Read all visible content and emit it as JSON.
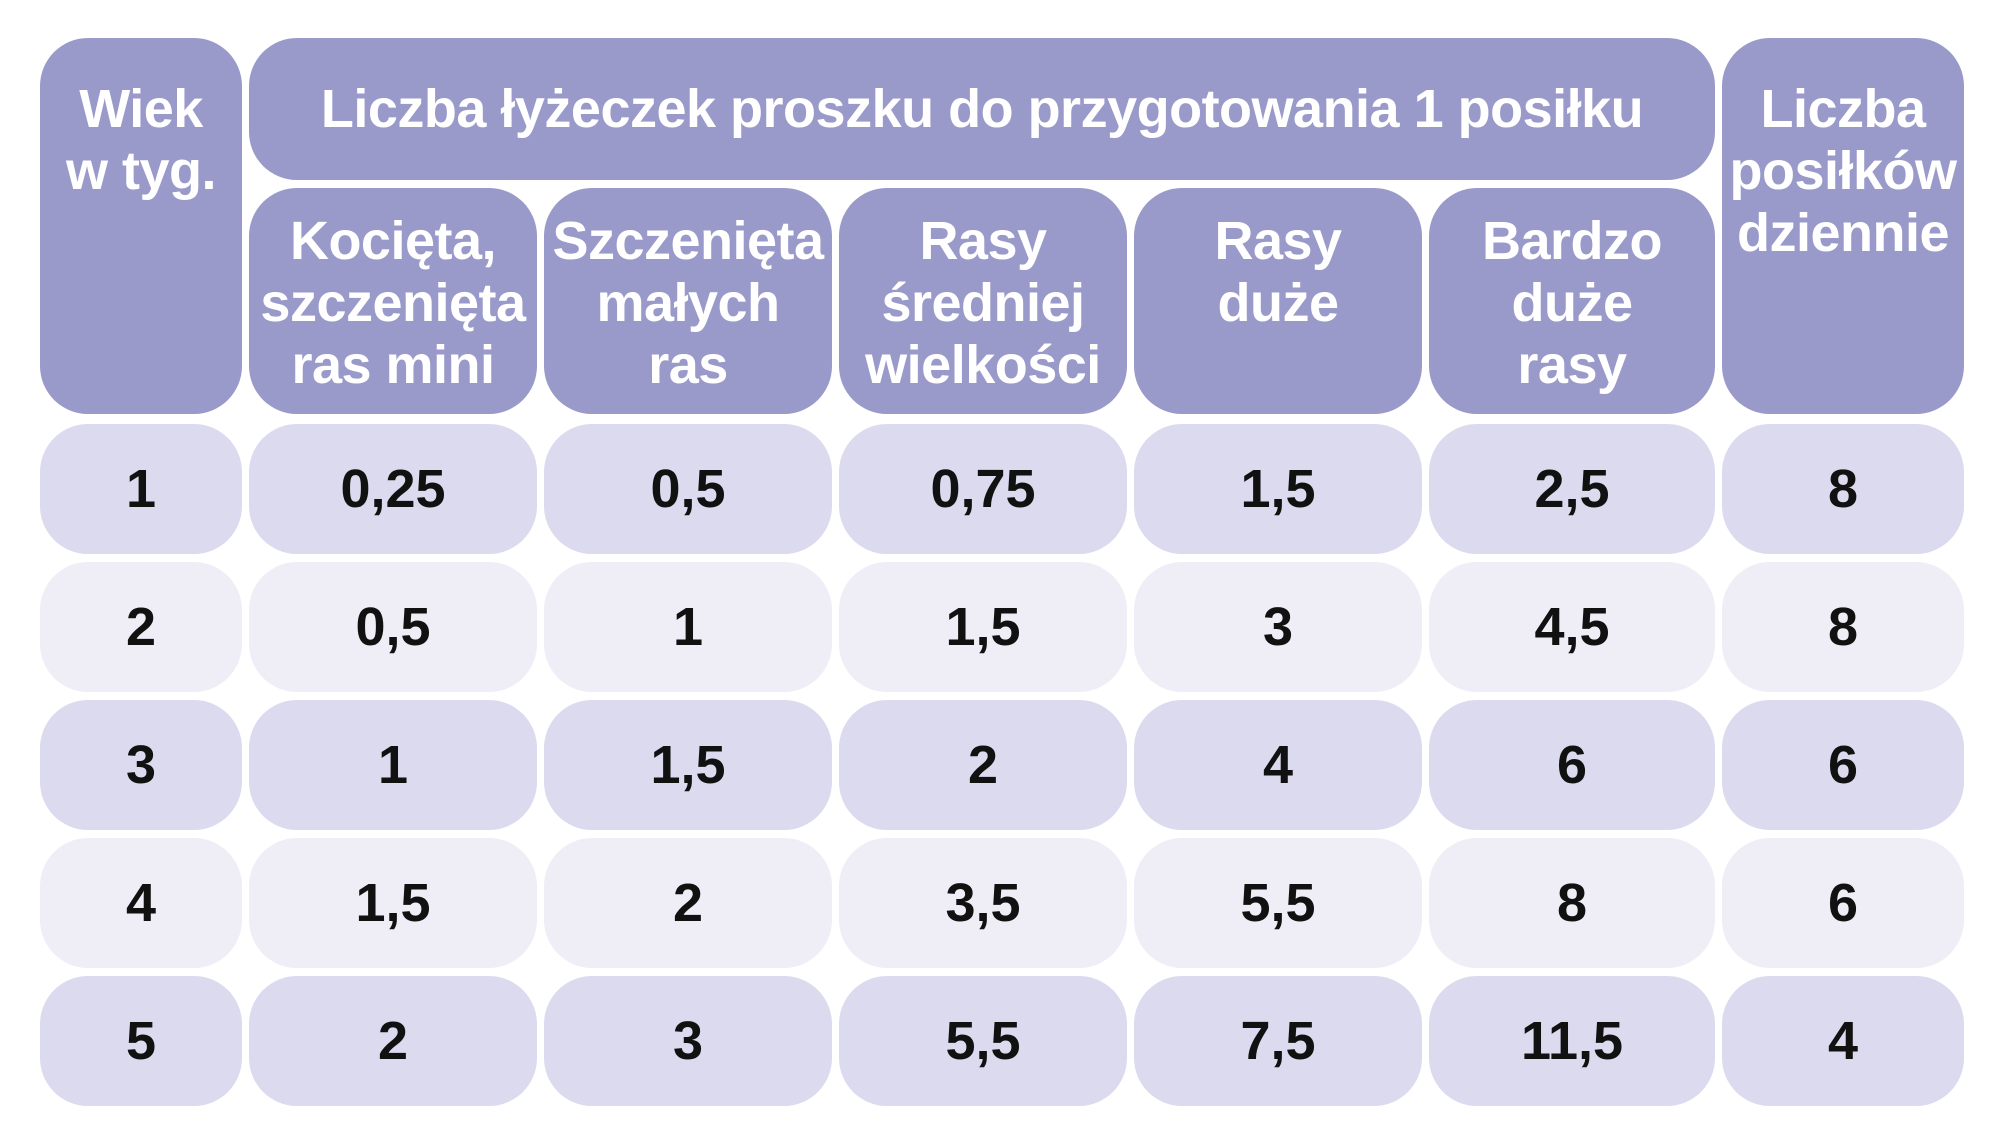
{
  "header": {
    "age_label": "Wiek\nw tyg.",
    "group_label": "Liczba łyżeczek proszku do przygotowania 1 posiłku",
    "meals_label": "Liczba\nposiłków\ndziennie",
    "sub_columns": [
      "Kocięta,\nszczenięta\nras mini",
      "Szczenięta\nmałych\nras",
      "Rasy\nśredniej\nwielkości",
      "Rasy\nduże",
      "Bardzo\nduże\nrasy"
    ]
  },
  "rows": [
    {
      "age": "1",
      "values": [
        "0,25",
        "0,5",
        "0,75",
        "1,5",
        "2,5"
      ],
      "meals": "8"
    },
    {
      "age": "2",
      "values": [
        "0,5",
        "1",
        "1,5",
        "3",
        "4,5"
      ],
      "meals": "8"
    },
    {
      "age": "3",
      "values": [
        "1",
        "1,5",
        "2",
        "4",
        "6"
      ],
      "meals": "6"
    },
    {
      "age": "4",
      "values": [
        "1,5",
        "2",
        "3,5",
        "5,5",
        "8"
      ],
      "meals": "6"
    },
    {
      "age": "5",
      "values": [
        "2",
        "3",
        "5,5",
        "7,5",
        "11,5"
      ],
      "meals": "4"
    }
  ],
  "colors": {
    "header_bg": "#9a9aca",
    "header_text": "#ffffff",
    "row_dark": "#dcdaee",
    "row_light": "#efeef7",
    "body_text": "#111111"
  }
}
